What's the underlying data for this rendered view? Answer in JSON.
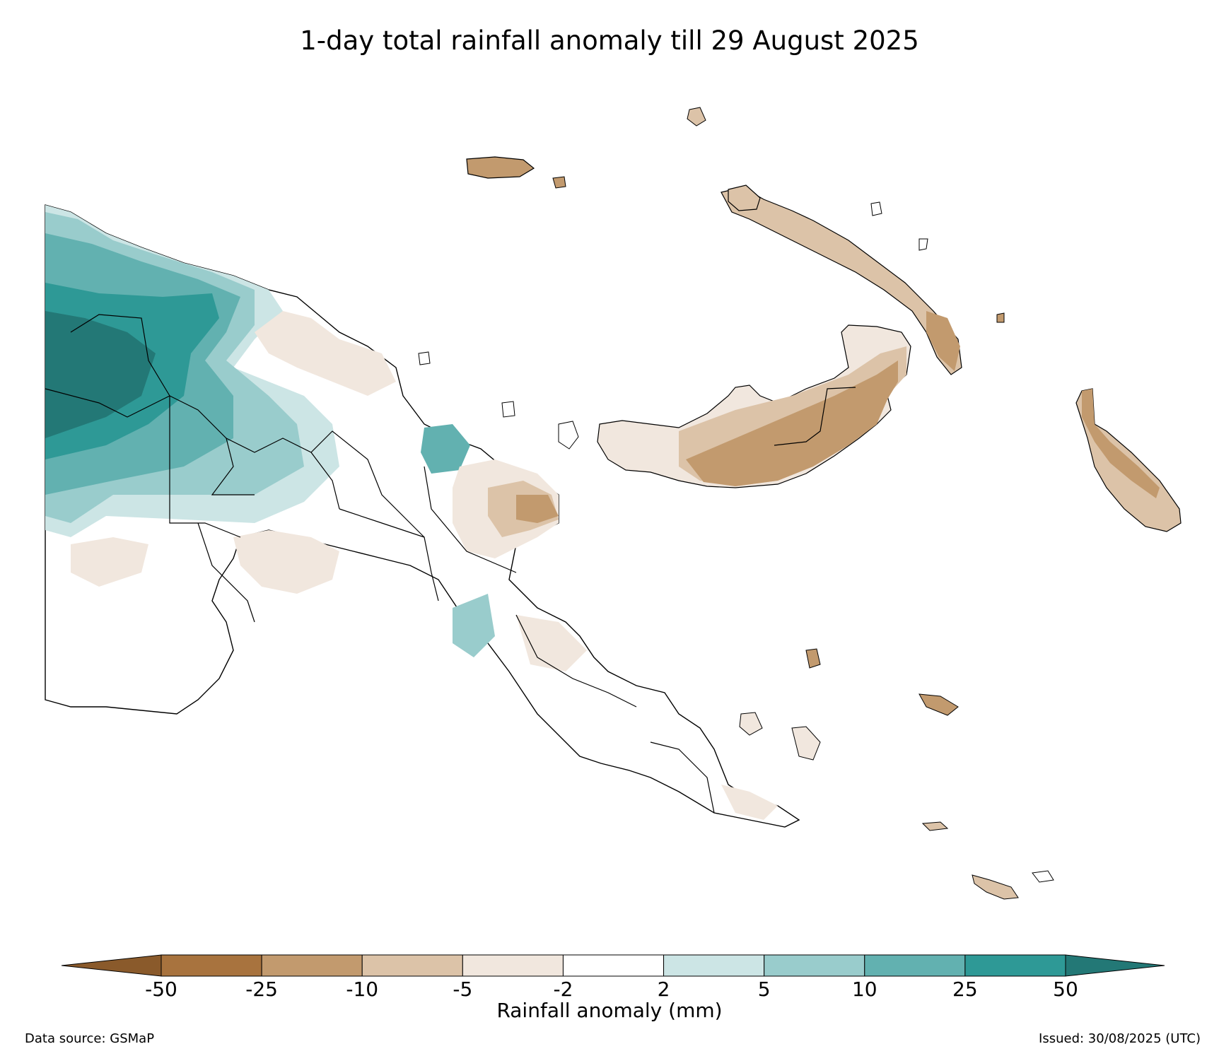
{
  "title": "1-day total rainfall anomaly till 29 August 2025",
  "colorbar": {
    "label": "Rainfall anomaly (mm)",
    "ticks": [
      "-50",
      "-25",
      "-10",
      "-5",
      "-2",
      "2",
      "5",
      "10",
      "25",
      "50"
    ],
    "colors": {
      "below_min": "#8a5a2b",
      "bins": [
        "#a8733e",
        "#c29a6e",
        "#dcc3a8",
        "#f1e7de",
        "#ffffff",
        "#cce5e5",
        "#99cccc",
        "#62b1b0",
        "#2e9996"
      ],
      "above_max": "#237876"
    }
  },
  "map_colors": {
    "outline": "#000000",
    "ocean": "#ffffff"
  },
  "footer": {
    "source": "Data source: GSMaP",
    "issued": "Issued: 30/08/2025 (UTC)"
  }
}
